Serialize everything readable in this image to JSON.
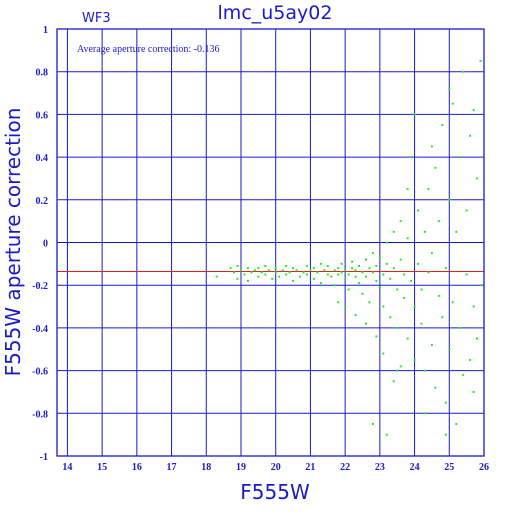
{
  "chart_data": {
    "type": "scatter",
    "title": "lmc_u5ay02",
    "panel_label": "WF3",
    "annotation": "Average aperture correction: -0.136",
    "xlabel": "F555W",
    "ylabel": "F555W aperture correction",
    "xlim": [
      13.7,
      26
    ],
    "ylim": [
      -1,
      1
    ],
    "xticks": [
      14,
      15,
      16,
      17,
      18,
      19,
      20,
      21,
      22,
      23,
      24,
      25,
      26
    ],
    "yticks": [
      -1,
      -0.8,
      -0.6,
      -0.4,
      -0.2,
      0,
      0.2,
      0.4,
      0.6,
      0.8,
      1
    ],
    "xtick_labels": [
      "14",
      "15",
      "16",
      "17",
      "18",
      "19",
      "20",
      "21",
      "22",
      "23",
      "24",
      "25",
      "26"
    ],
    "ytick_labels": [
      "-1",
      "-0.8",
      "-0.6",
      "-0.4",
      "-0.2",
      "0",
      "0.2",
      "0.4",
      "0.6",
      "0.8",
      "1"
    ],
    "grid": true,
    "reference_line": {
      "y": -0.136,
      "color": "#e02020"
    },
    "point_color": "#22ee22",
    "axis_color": "#1a1acc",
    "points": [
      [
        18.3,
        -0.16
      ],
      [
        18.7,
        -0.12
      ],
      [
        18.8,
        -0.14
      ],
      [
        18.9,
        -0.11
      ],
      [
        18.9,
        -0.17
      ],
      [
        19.0,
        -0.13
      ],
      [
        19.1,
        -0.15
      ],
      [
        19.2,
        -0.12
      ],
      [
        19.2,
        -0.18
      ],
      [
        19.3,
        -0.14
      ],
      [
        19.4,
        -0.13
      ],
      [
        19.5,
        -0.12
      ],
      [
        19.5,
        -0.16
      ],
      [
        19.6,
        -0.14
      ],
      [
        19.7,
        -0.11
      ],
      [
        19.7,
        -0.15
      ],
      [
        19.8,
        -0.13
      ],
      [
        19.9,
        -0.17
      ],
      [
        20.0,
        -0.12
      ],
      [
        20.0,
        -0.14
      ],
      [
        20.1,
        -0.16
      ],
      [
        20.2,
        -0.13
      ],
      [
        20.3,
        -0.11
      ],
      [
        20.3,
        -0.15
      ],
      [
        20.4,
        -0.14
      ],
      [
        20.5,
        -0.12
      ],
      [
        20.5,
        -0.18
      ],
      [
        20.6,
        -0.13
      ],
      [
        20.7,
        -0.16
      ],
      [
        20.8,
        -0.14
      ],
      [
        20.9,
        -0.11
      ],
      [
        20.9,
        -0.15
      ],
      [
        21.0,
        -0.13
      ],
      [
        21.1,
        -0.17
      ],
      [
        21.1,
        -0.12
      ],
      [
        21.2,
        -0.14
      ],
      [
        21.3,
        -0.1
      ],
      [
        21.3,
        -0.19
      ],
      [
        21.4,
        -0.13
      ],
      [
        21.5,
        -0.15
      ],
      [
        21.5,
        -0.11
      ],
      [
        21.6,
        -0.16
      ],
      [
        21.7,
        -0.13
      ],
      [
        21.7,
        -0.2
      ],
      [
        21.8,
        -0.12
      ],
      [
        21.8,
        -0.15
      ],
      [
        21.9,
        -0.14
      ],
      [
        21.9,
        -0.1
      ],
      [
        22.0,
        -0.17
      ],
      [
        22.0,
        -0.13
      ],
      [
        22.1,
        -0.15
      ],
      [
        22.1,
        -0.22
      ],
      [
        22.2,
        -0.12
      ],
      [
        22.2,
        -0.09
      ],
      [
        22.3,
        -0.16
      ],
      [
        22.3,
        -0.13
      ],
      [
        22.4,
        -0.19
      ],
      [
        22.4,
        -0.11
      ],
      [
        22.5,
        -0.14
      ],
      [
        22.5,
        -0.24
      ],
      [
        22.6,
        -0.08
      ],
      [
        22.6,
        -0.16
      ],
      [
        22.7,
        -0.12
      ],
      [
        22.7,
        -0.28
      ],
      [
        22.8,
        -0.14
      ],
      [
        22.8,
        -0.05
      ],
      [
        22.9,
        -0.18
      ],
      [
        22.9,
        -0.11
      ],
      [
        23.0,
        -0.21
      ],
      [
        23.0,
        -0.07
      ],
      [
        23.1,
        -0.15
      ],
      [
        23.1,
        -0.3
      ],
      [
        23.2,
        -0.1
      ],
      [
        23.2,
        0.0
      ],
      [
        23.3,
        -0.17
      ],
      [
        23.3,
        -0.35
      ],
      [
        23.4,
        -0.12
      ],
      [
        23.4,
        0.05
      ],
      [
        23.5,
        -0.22
      ],
      [
        23.5,
        -0.4
      ],
      [
        23.6,
        -0.08
      ],
      [
        23.6,
        0.1
      ],
      [
        23.7,
        -0.26
      ],
      [
        23.7,
        -0.15
      ],
      [
        23.8,
        -0.45
      ],
      [
        23.8,
        0.02
      ],
      [
        23.9,
        -0.18
      ],
      [
        23.9,
        0.4
      ],
      [
        24.0,
        -0.3
      ],
      [
        24.0,
        -0.55
      ],
      [
        24.1,
        0.15
      ],
      [
        24.1,
        -0.1
      ],
      [
        24.2,
        -0.38
      ],
      [
        24.2,
        -0.22
      ],
      [
        24.3,
        0.05
      ],
      [
        24.3,
        -0.6
      ],
      [
        24.4,
        -0.14
      ],
      [
        24.4,
        0.25
      ],
      [
        24.5,
        -0.48
      ],
      [
        24.5,
        -0.05
      ],
      [
        24.6,
        0.35
      ],
      [
        24.6,
        -0.68
      ],
      [
        24.7,
        -0.25
      ],
      [
        24.7,
        0.1
      ],
      [
        24.8,
        -0.35
      ],
      [
        24.8,
        0.55
      ],
      [
        24.9,
        -0.75
      ],
      [
        24.9,
        -0.12
      ],
      [
        25.0,
        0.2
      ],
      [
        25.0,
        -0.5
      ],
      [
        25.1,
        0.65
      ],
      [
        25.1,
        -0.28
      ],
      [
        25.2,
        -0.85
      ],
      [
        25.2,
        0.05
      ],
      [
        25.3,
        0.4
      ],
      [
        25.3,
        -0.4
      ],
      [
        25.4,
        -0.62
      ],
      [
        25.4,
        0.8
      ],
      [
        25.5,
        -0.15
      ],
      [
        25.5,
        0.15
      ],
      [
        25.6,
        -0.55
      ],
      [
        25.6,
        0.5
      ],
      [
        25.7,
        -0.7
      ],
      [
        25.7,
        -0.3
      ],
      [
        25.8,
        0.3
      ],
      [
        25.8,
        -0.45
      ],
      [
        25.9,
        0.85
      ],
      [
        25.9,
        -0.2
      ],
      [
        23.5,
        -0.6
      ],
      [
        22.0,
        -0.3
      ],
      [
        22.6,
        -0.38
      ],
      [
        23.1,
        -0.52
      ],
      [
        23.4,
        -0.65
      ],
      [
        24.9,
        -0.9
      ],
      [
        23.8,
        0.25
      ],
      [
        24.5,
        0.45
      ],
      [
        25.0,
        0.72
      ],
      [
        25.7,
        0.62
      ],
      [
        21.8,
        -0.28
      ],
      [
        22.3,
        -0.34
      ],
      [
        22.9,
        -0.44
      ],
      [
        23.6,
        -0.58
      ],
      [
        24.3,
        -0.8
      ],
      [
        24.0,
        0.6
      ],
      [
        22.8,
        -0.85
      ],
      [
        23.2,
        -0.9
      ]
    ]
  }
}
